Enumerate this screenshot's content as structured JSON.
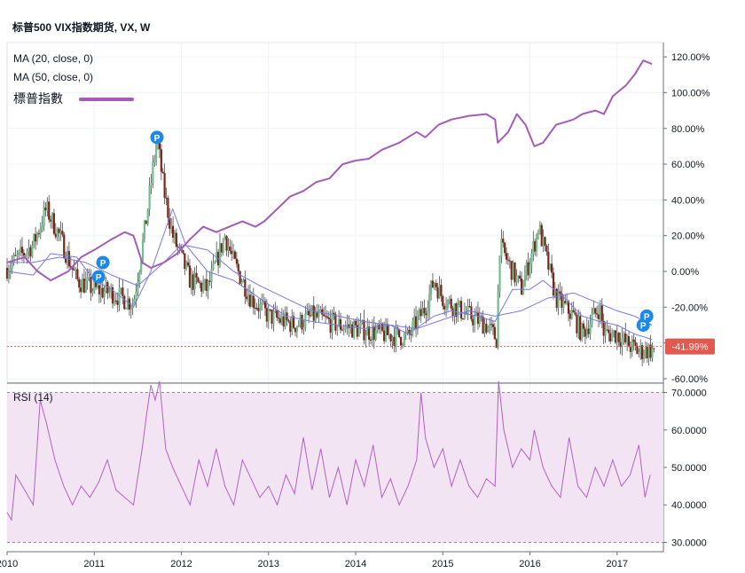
{
  "header": {
    "title": "标普500 VIX指数期货, VX, W"
  },
  "legend": {
    "ma20": "MA (20, close, 0)",
    "ma50": "MA (50, close, 0)",
    "index": "標普指數",
    "rsi": "RSI (14)"
  },
  "colors": {
    "up": "#6fbf8e",
    "down": "#7b2418",
    "wick": "#4a4a4a",
    "ma20": "#7b78e6",
    "ma50": "#7b78e6",
    "index": "#a55cb9",
    "rsi_line": "#b261c5",
    "rsi_band": "#f2e4f2",
    "price_line": "#e05a50",
    "badge": "#1e88e5"
  },
  "markers": {
    "label": "P"
  },
  "chart_data": [
    {
      "type": "candlestick",
      "title": "标普500 VIX指数期货, VX, W",
      "y_axis": {
        "position": "right",
        "unit": "%",
        "range": [
          -62,
          128
        ],
        "ticks": [
          "120.00%",
          "100.00%",
          "80.00%",
          "60.00%",
          "40.00%",
          "20.00%",
          "0.00%",
          "-20.00%",
          "-40.00%",
          "-60.00%"
        ]
      },
      "x_axis": {
        "ticks": [
          "2010",
          "2011",
          "2012",
          "2013",
          "2014",
          "2015",
          "2016",
          "2017"
        ],
        "range": [
          2010.0,
          2017.45
        ]
      },
      "current_value_label": "-41.99%",
      "current_value": -41.99,
      "candles_description": "weekly VIX futures candles, percent change relative to start",
      "candles_overview": [
        [
          2010.0,
          2
        ],
        [
          2010.3,
          15
        ],
        [
          2010.45,
          35
        ],
        [
          2010.6,
          20
        ],
        [
          2010.8,
          -5
        ],
        [
          2011.0,
          -10
        ],
        [
          2011.2,
          -12
        ],
        [
          2011.45,
          -18
        ],
        [
          2011.6,
          30
        ],
        [
          2011.72,
          75
        ],
        [
          2011.8,
          45
        ],
        [
          2011.9,
          20
        ],
        [
          2012.1,
          -5
        ],
        [
          2012.3,
          -10
        ],
        [
          2012.4,
          5
        ],
        [
          2012.5,
          20
        ],
        [
          2012.6,
          5
        ],
        [
          2012.8,
          -15
        ],
        [
          2013.0,
          -25
        ],
        [
          2013.3,
          -30
        ],
        [
          2013.5,
          -25
        ],
        [
          2013.8,
          -30
        ],
        [
          2014.0,
          -32
        ],
        [
          2014.3,
          -35
        ],
        [
          2014.6,
          -37
        ],
        [
          2014.8,
          -20
        ],
        [
          2014.9,
          -5
        ],
        [
          2015.0,
          -15
        ],
        [
          2015.2,
          -22
        ],
        [
          2015.5,
          -30
        ],
        [
          2015.62,
          -38
        ],
        [
          2015.65,
          15
        ],
        [
          2015.75,
          5
        ],
        [
          2015.9,
          -10
        ],
        [
          2016.05,
          15
        ],
        [
          2016.1,
          25
        ],
        [
          2016.2,
          5
        ],
        [
          2016.3,
          -15
        ],
        [
          2016.5,
          -25
        ],
        [
          2016.6,
          -35
        ],
        [
          2016.8,
          -20
        ],
        [
          2016.85,
          -35
        ],
        [
          2017.0,
          -35
        ],
        [
          2017.1,
          -40
        ],
        [
          2017.25,
          -45
        ],
        [
          2017.35,
          -44
        ]
      ],
      "series": [
        {
          "name": "MA (20, close, 0)",
          "points": [
            [
              2010.0,
              0
            ],
            [
              2010.3,
              -2
            ],
            [
              2010.5,
              10
            ],
            [
              2010.8,
              8
            ],
            [
              2011.0,
              -5
            ],
            [
              2011.2,
              -10
            ],
            [
              2011.45,
              -20
            ],
            [
              2011.65,
              0
            ],
            [
              2011.9,
              35
            ],
            [
              2012.05,
              15
            ],
            [
              2012.3,
              0
            ],
            [
              2012.6,
              -5
            ],
            [
              2012.9,
              -15
            ],
            [
              2013.2,
              -25
            ],
            [
              2013.5,
              -28
            ],
            [
              2013.8,
              -30
            ],
            [
              2014.1,
              -32
            ],
            [
              2014.4,
              -30
            ],
            [
              2014.6,
              -35
            ],
            [
              2014.9,
              -25
            ],
            [
              2015.1,
              -22
            ],
            [
              2015.4,
              -25
            ],
            [
              2015.6,
              -28
            ],
            [
              2015.8,
              -10
            ],
            [
              2016.0,
              -10
            ],
            [
              2016.15,
              -5
            ],
            [
              2016.4,
              -15
            ],
            [
              2016.6,
              -25
            ],
            [
              2016.8,
              -28
            ],
            [
              2017.0,
              -30
            ],
            [
              2017.2,
              -35
            ],
            [
              2017.4,
              -38
            ]
          ]
        },
        {
          "name": "MA (50, close, 0)",
          "points": [
            [
              2010.0,
              5
            ],
            [
              2010.3,
              5
            ],
            [
              2010.6,
              8
            ],
            [
              2010.9,
              5
            ],
            [
              2011.2,
              -2
            ],
            [
              2011.5,
              -8
            ],
            [
              2011.8,
              5
            ],
            [
              2012.0,
              15
            ],
            [
              2012.3,
              12
            ],
            [
              2012.6,
              0
            ],
            [
              2012.9,
              -8
            ],
            [
              2013.2,
              -15
            ],
            [
              2013.5,
              -22
            ],
            [
              2013.8,
              -25
            ],
            [
              2014.1,
              -28
            ],
            [
              2014.4,
              -30
            ],
            [
              2014.7,
              -32
            ],
            [
              2015.0,
              -27
            ],
            [
              2015.3,
              -22
            ],
            [
              2015.6,
              -25
            ],
            [
              2015.9,
              -22
            ],
            [
              2016.2,
              -15
            ],
            [
              2016.5,
              -12
            ],
            [
              2016.8,
              -18
            ],
            [
              2017.0,
              -22
            ],
            [
              2017.2,
              -25
            ],
            [
              2017.4,
              -30
            ]
          ]
        },
        {
          "name": "標普指數",
          "points": [
            [
              2010.0,
              5
            ],
            [
              2010.2,
              8
            ],
            [
              2010.35,
              0
            ],
            [
              2010.5,
              -5
            ],
            [
              2010.7,
              0
            ],
            [
              2010.85,
              8
            ],
            [
              2011.0,
              12
            ],
            [
              2011.2,
              18
            ],
            [
              2011.35,
              22
            ],
            [
              2011.45,
              20
            ],
            [
              2011.55,
              5
            ],
            [
              2011.65,
              2
            ],
            [
              2011.8,
              5
            ],
            [
              2011.95,
              10
            ],
            [
              2012.1,
              18
            ],
            [
              2012.25,
              25
            ],
            [
              2012.4,
              22
            ],
            [
              2012.55,
              25
            ],
            [
              2012.7,
              28
            ],
            [
              2012.85,
              25
            ],
            [
              2012.95,
              28
            ],
            [
              2013.1,
              35
            ],
            [
              2013.25,
              42
            ],
            [
              2013.4,
              45
            ],
            [
              2013.55,
              50
            ],
            [
              2013.7,
              52
            ],
            [
              2013.85,
              60
            ],
            [
              2014.0,
              62
            ],
            [
              2014.15,
              63
            ],
            [
              2014.3,
              68
            ],
            [
              2014.5,
              72
            ],
            [
              2014.7,
              78
            ],
            [
              2014.8,
              75
            ],
            [
              2014.95,
              82
            ],
            [
              2015.1,
              85
            ],
            [
              2015.3,
              87
            ],
            [
              2015.5,
              88
            ],
            [
              2015.6,
              85
            ],
            [
              2015.63,
              72
            ],
            [
              2015.75,
              78
            ],
            [
              2015.85,
              88
            ],
            [
              2015.95,
              82
            ],
            [
              2016.05,
              70
            ],
            [
              2016.15,
              72
            ],
            [
              2016.3,
              82
            ],
            [
              2016.5,
              85
            ],
            [
              2016.6,
              88
            ],
            [
              2016.75,
              90
            ],
            [
              2016.85,
              88
            ],
            [
              2016.95,
              98
            ],
            [
              2017.1,
              104
            ],
            [
              2017.2,
              110
            ],
            [
              2017.3,
              118
            ],
            [
              2017.4,
              116
            ]
          ]
        }
      ]
    },
    {
      "type": "line",
      "title": "RSI (14)",
      "y_axis": {
        "position": "right",
        "range": [
          27.5,
          72.5
        ],
        "ticks": [
          "70.0000",
          "60.0000",
          "50.0000",
          "40.0000",
          "30.0000"
        ]
      },
      "x_axis": {
        "ticks": [
          "2010",
          "2011",
          "2012",
          "2013",
          "2014",
          "2015",
          "2016",
          "2017"
        ],
        "range": [
          2010.0,
          2017.45
        ]
      },
      "bands": {
        "upper": 70,
        "lower": 30
      },
      "series": [
        {
          "name": "RSI (14)",
          "points": [
            [
              2010.0,
              38
            ],
            [
              2010.05,
              36
            ],
            [
              2010.1,
              48
            ],
            [
              2010.2,
              44
            ],
            [
              2010.3,
              40
            ],
            [
              2010.38,
              68
            ],
            [
              2010.45,
              62
            ],
            [
              2010.55,
              52
            ],
            [
              2010.65,
              45
            ],
            [
              2010.75,
              40
            ],
            [
              2010.85,
              45
            ],
            [
              2010.95,
              42
            ],
            [
              2011.05,
              46
            ],
            [
              2011.15,
              52
            ],
            [
              2011.25,
              44
            ],
            [
              2011.35,
              42
            ],
            [
              2011.45,
              40
            ],
            [
              2011.55,
              55
            ],
            [
              2011.6,
              64
            ],
            [
              2011.65,
              72
            ],
            [
              2011.7,
              68
            ],
            [
              2011.75,
              73
            ],
            [
              2011.82,
              55
            ],
            [
              2011.9,
              50
            ],
            [
              2012.0,
              45
            ],
            [
              2012.1,
              40
            ],
            [
              2012.2,
              52
            ],
            [
              2012.3,
              45
            ],
            [
              2012.4,
              55
            ],
            [
              2012.5,
              45
            ],
            [
              2012.6,
              40
            ],
            [
              2012.7,
              52
            ],
            [
              2012.8,
              47
            ],
            [
              2012.9,
              42
            ],
            [
              2013.0,
              45
            ],
            [
              2013.1,
              40
            ],
            [
              2013.2,
              48
            ],
            [
              2013.3,
              43
            ],
            [
              2013.4,
              58
            ],
            [
              2013.5,
              44
            ],
            [
              2013.6,
              55
            ],
            [
              2013.7,
              42
            ],
            [
              2013.8,
              50
            ],
            [
              2013.9,
              40
            ],
            [
              2014.0,
              52
            ],
            [
              2014.1,
              45
            ],
            [
              2014.2,
              56
            ],
            [
              2014.3,
              42
            ],
            [
              2014.4,
              47
            ],
            [
              2014.5,
              40
            ],
            [
              2014.6,
              45
            ],
            [
              2014.7,
              52
            ],
            [
              2014.75,
              70
            ],
            [
              2014.8,
              58
            ],
            [
              2014.9,
              50
            ],
            [
              2015.0,
              55
            ],
            [
              2015.1,
              45
            ],
            [
              2015.2,
              52
            ],
            [
              2015.3,
              45
            ],
            [
              2015.4,
              42
            ],
            [
              2015.5,
              47
            ],
            [
              2015.6,
              45
            ],
            [
              2015.64,
              73
            ],
            [
              2015.7,
              60
            ],
            [
              2015.8,
              50
            ],
            [
              2015.9,
              55
            ],
            [
              2016.0,
              52
            ],
            [
              2016.05,
              60
            ],
            [
              2016.15,
              50
            ],
            [
              2016.25,
              45
            ],
            [
              2016.35,
              42
            ],
            [
              2016.45,
              58
            ],
            [
              2016.55,
              45
            ],
            [
              2016.65,
              42
            ],
            [
              2016.75,
              50
            ],
            [
              2016.85,
              45
            ],
            [
              2016.95,
              52
            ],
            [
              2017.05,
              45
            ],
            [
              2017.15,
              48
            ],
            [
              2017.25,
              56
            ],
            [
              2017.32,
              42
            ],
            [
              2017.38,
              48
            ]
          ]
        }
      ]
    }
  ]
}
